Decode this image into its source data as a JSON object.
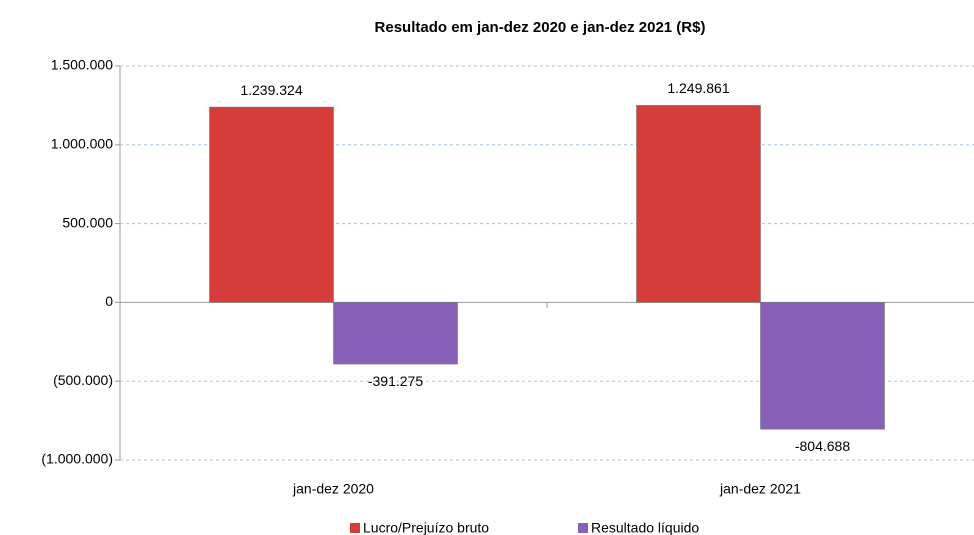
{
  "chart_data": {
    "type": "bar",
    "title": "Resultado em jan-dez 2020 e jan-dez 2021 (R$)",
    "categories": [
      "jan-dez 2020",
      "jan-dez 2021"
    ],
    "series": [
      {
        "name": "Lucro/Prejuízo bruto",
        "color": "#d63c3a",
        "values": [
          1239324,
          1249861
        ],
        "value_labels": [
          "1.239.324",
          "1.249.861"
        ]
      },
      {
        "name": "Resultado líquido",
        "color": "#8860b8",
        "values": [
          -391275,
          -804688
        ],
        "value_labels": [
          "-391.275",
          "-804.688"
        ]
      }
    ],
    "ylim": [
      -1000000,
      1500000
    ],
    "yticks": [
      {
        "value": -1000000,
        "label": "(1.000.000)"
      },
      {
        "value": -500000,
        "label": "(500.000)"
      },
      0,
      {
        "value": 500000,
        "label": "500.000"
      },
      {
        "value": 1000000,
        "label": "1.000.000"
      },
      {
        "value": 1500000,
        "label": "1.500.000"
      }
    ],
    "grid": true,
    "legend": "bottom"
  }
}
